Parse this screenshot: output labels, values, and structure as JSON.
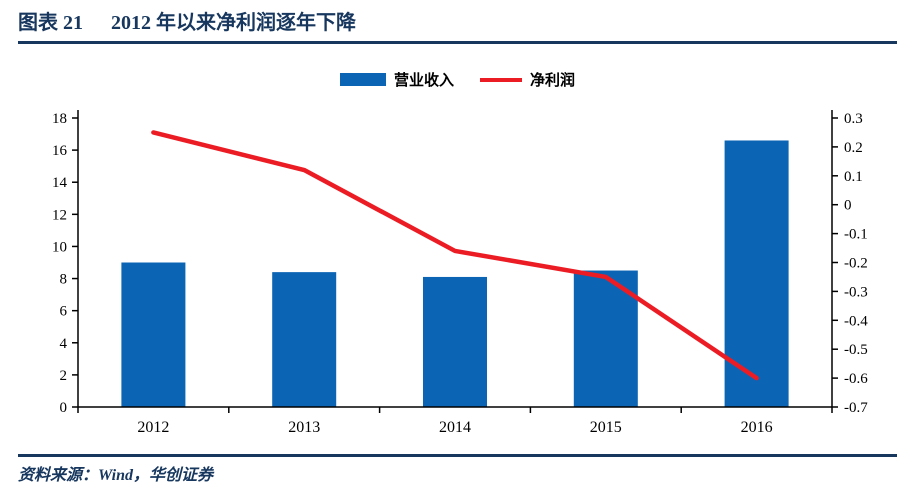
{
  "header": {
    "figure_label": "图表 21",
    "figure_title": "2012 年以来净利润逐年下降"
  },
  "footer": {
    "source_text": "资料来源：Wind，华创证券"
  },
  "colors": {
    "accent_navy": "#17375E",
    "bar_blue": "#0B64B4",
    "line_red": "#EC1C24",
    "axis_black": "#000000"
  },
  "chart_data": {
    "type": "combo",
    "title": "2012 年以来净利润逐年下降",
    "legend_position": "top",
    "grid": false,
    "categories": [
      "2012",
      "2013",
      "2014",
      "2015",
      "2016"
    ],
    "series": [
      {
        "name": "营业收入",
        "type": "bar",
        "axis": "left",
        "color": "#0B64B4",
        "values": [
          9.0,
          8.4,
          8.1,
          8.5,
          16.6
        ]
      },
      {
        "name": "净利润",
        "type": "line",
        "axis": "right",
        "color": "#EC1C24",
        "values": [
          0.25,
          0.12,
          -0.16,
          -0.25,
          -0.6
        ]
      }
    ],
    "left_axis": {
      "min": 0,
      "max": 18,
      "step": 2,
      "ticks": [
        "0",
        "2",
        "4",
        "6",
        "8",
        "10",
        "12",
        "14",
        "16",
        "18"
      ]
    },
    "right_axis": {
      "min": -0.7,
      "max": 0.3,
      "step": 0.1,
      "ticks_top_down": [
        "0.3",
        "0.2",
        "0.1",
        "0",
        "-0.1",
        "-0.2",
        "-0.3",
        "-0.4",
        "-0.5",
        "-0.6",
        "-0.7"
      ]
    }
  }
}
